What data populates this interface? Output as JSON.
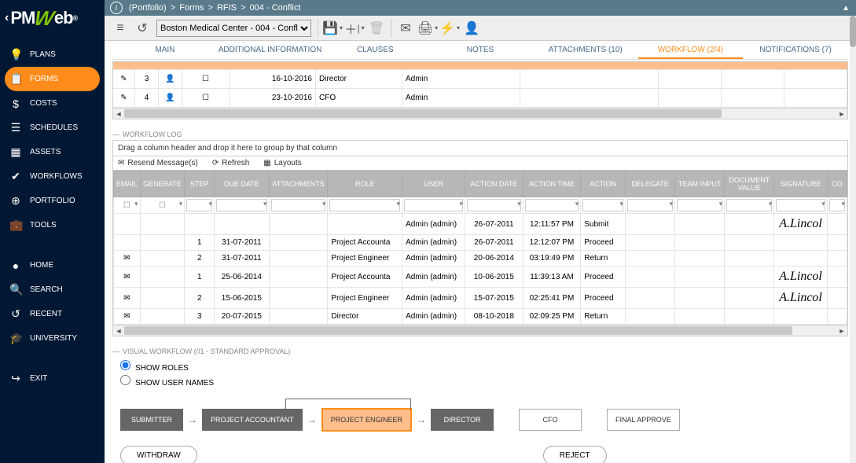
{
  "breadcrumb": [
    "(Portfolio)",
    "Forms",
    "RFIS",
    "004 - Conflict"
  ],
  "project_selector": "Boston Medical Center - 004 - Confl",
  "sidebar": [
    {
      "icon": "💡",
      "label": "PLANS"
    },
    {
      "icon": "📋",
      "label": "FORMS",
      "active": true
    },
    {
      "icon": "$",
      "label": "COSTS"
    },
    {
      "icon": "☰",
      "label": "SCHEDULES"
    },
    {
      "icon": "▦",
      "label": "ASSETS"
    },
    {
      "icon": "✔",
      "label": "WORKFLOWS"
    },
    {
      "icon": "⊕",
      "label": "PORTFOLIO"
    },
    {
      "icon": "💼",
      "label": "TOOLS"
    },
    {
      "icon": "●",
      "label": "HOME"
    },
    {
      "icon": "🔍",
      "label": "SEARCH"
    },
    {
      "icon": "↺",
      "label": "RECENT"
    },
    {
      "icon": "🎓",
      "label": "UNIVERSITY"
    },
    {
      "icon": "↪",
      "label": "EXIT"
    }
  ],
  "tabs": [
    {
      "label": "MAIN"
    },
    {
      "label": "ADDITIONAL INFORMATION"
    },
    {
      "label": "CLAUSES"
    },
    {
      "label": "NOTES"
    },
    {
      "label": "ATTACHMENTS (10)"
    },
    {
      "label": "WORKFLOW (2/4)",
      "active": true
    },
    {
      "label": "NOTIFICATIONS (7)"
    }
  ],
  "upper_rows": [
    {
      "num": "3",
      "date": "16-10-2016",
      "role": "Director",
      "user": "Admin"
    },
    {
      "num": "4",
      "date": "23-10-2016",
      "role": "CFO",
      "user": "Admin"
    }
  ],
  "workflow_log_title": "WORKFLOW LOG",
  "drag_hint": "Drag a column header and drop it here to group by that column",
  "toolbar_actions": {
    "resend": "Resend Message(s)",
    "refresh": "Refresh",
    "layouts": "Layouts"
  },
  "log_columns": [
    "EMAIL",
    "GENERATE",
    "STEP",
    "DUE DATE",
    "ATTACHMENTS",
    "ROLE",
    "USER",
    "ACTION DATE",
    "ACTION TIME",
    "ACTION",
    "DELEGATE",
    "TEAM INPUT",
    "DOCUMENT VALUE",
    "SIGNATURE",
    "CO"
  ],
  "log_rows": [
    {
      "step": "",
      "due": "",
      "role": "",
      "user": "Admin (admin)",
      "adate": "26-07-2011",
      "atime": "12:11:57 PM",
      "action": "Submit",
      "sig": "A.Lincol"
    },
    {
      "step": "1",
      "due": "31-07-2011",
      "role": "Project Accounta",
      "user": "Admin (admin)",
      "adate": "26-07-2011",
      "atime": "12:12:07 PM",
      "action": "Proceed",
      "sig": ""
    },
    {
      "mail": true,
      "step": "2",
      "due": "31-07-2011",
      "role": "Project Engineer",
      "user": "Admin (admin)",
      "adate": "20-06-2014",
      "atime": "03:19:49 PM",
      "action": "Return",
      "sig": ""
    },
    {
      "mail": true,
      "step": "1",
      "due": "25-06-2014",
      "role": "Project Accounta",
      "user": "Admin (admin)",
      "adate": "10-06-2015",
      "atime": "11:39:13 AM",
      "action": "Proceed",
      "sig": "A.Lincol"
    },
    {
      "mail": true,
      "step": "2",
      "due": "15-06-2015",
      "role": "Project Engineer",
      "user": "Admin (admin)",
      "adate": "15-07-2015",
      "atime": "02:25:41 PM",
      "action": "Proceed",
      "sig": "A.Lincol"
    },
    {
      "mail": true,
      "step": "3",
      "due": "20-07-2015",
      "role": "Director",
      "user": "Admin (admin)",
      "adate": "08-10-2018",
      "atime": "02:09:25 PM",
      "action": "Return",
      "sig": ""
    }
  ],
  "visual_workflow_title": "VISUAL WORKFLOW (01 - STANDARD APPROVAL)",
  "radio_roles": "SHOW ROLES",
  "radio_users": "SHOW USER NAMES",
  "flow_nodes": [
    {
      "label": "SUBMITTER",
      "style": "dark"
    },
    {
      "label": "PROJECT ACCOUNTANT",
      "style": "dark"
    },
    {
      "label": "PROJECT ENGINEER",
      "style": "orange"
    },
    {
      "label": "DIRECTOR",
      "style": "dark"
    },
    {
      "label": "CFO",
      "style": "outline"
    },
    {
      "label": "FINAL APPROVE",
      "style": "outline"
    }
  ],
  "btn_withdraw": "WITHDRAW",
  "btn_reject": "REJECT",
  "colors": {
    "topbar": "#5a7a8c",
    "sidebar": "#001833",
    "accent": "#ff8c1a",
    "accent_light": "#ffbe8c",
    "header_gray": "#b7b7b7"
  }
}
